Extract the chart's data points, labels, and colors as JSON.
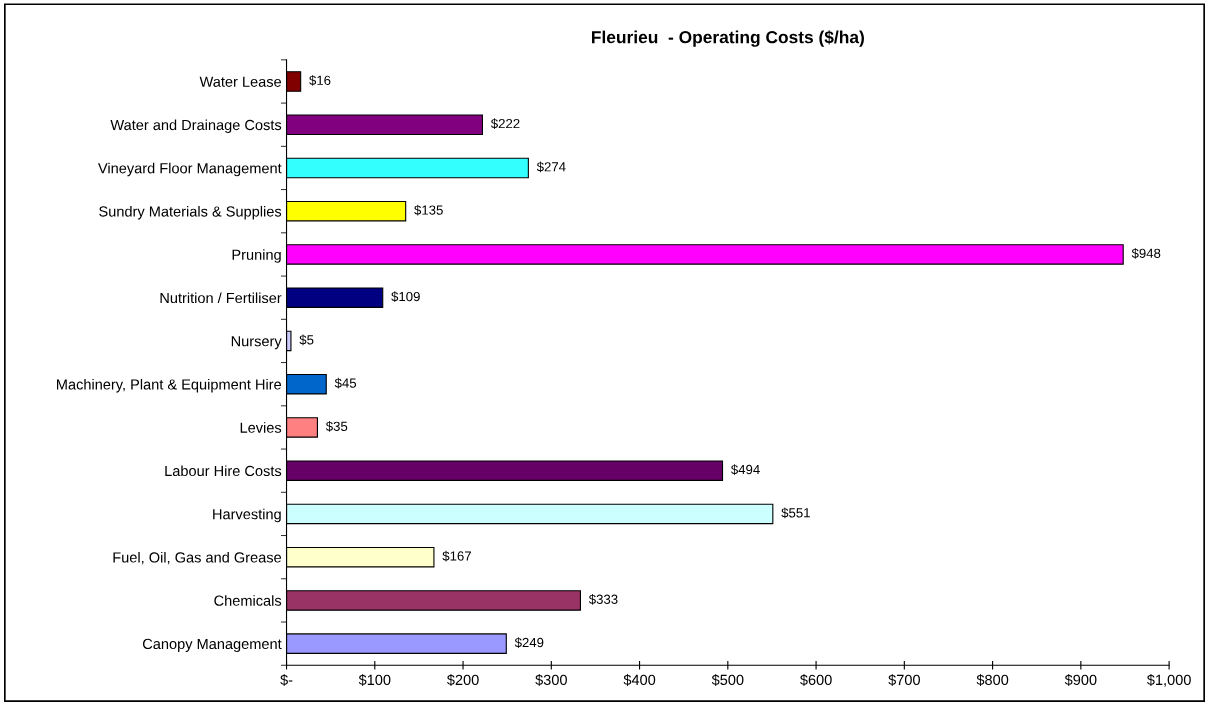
{
  "chart_data": {
    "type": "bar",
    "orientation": "horizontal",
    "title": "Fleurieu  - Operating Costs ($/ha)",
    "categories": [
      "Water Lease",
      "Water and Drainage Costs",
      "Vineyard Floor Management",
      "Sundry Materials & Supplies",
      "Pruning",
      "Nutrition / Fertiliser",
      "Nursery",
      "Machinery, Plant & Equipment Hire",
      "Levies",
      "Labour Hire Costs",
      "Harvesting",
      "Fuel, Oil, Gas and Grease",
      "Chemicals",
      "Canopy Management"
    ],
    "values": [
      16,
      222,
      274,
      135,
      948,
      109,
      5,
      45,
      35,
      494,
      551,
      167,
      333,
      249
    ],
    "value_labels": [
      "$16",
      "$222",
      "$274",
      "$135",
      "$948",
      "$109",
      "$5",
      "$45",
      "$35",
      "$494",
      "$551",
      "$167",
      "$333",
      "$249"
    ],
    "colors": [
      "#800000",
      "#800080",
      "#33ffff",
      "#ffff00",
      "#ff00ff",
      "#000080",
      "#ccccff",
      "#0066cc",
      "#ff8080",
      "#660066",
      "#ccffff",
      "#ffffcc",
      "#993366",
      "#9999ff"
    ],
    "xlim": [
      0,
      1000
    ],
    "xticks": [
      {
        "value": 0,
        "label": "$-"
      },
      {
        "value": 100,
        "label": "$100"
      },
      {
        "value": 200,
        "label": "$200"
      },
      {
        "value": 300,
        "label": "$300"
      },
      {
        "value": 400,
        "label": "$400"
      },
      {
        "value": 500,
        "label": "$500"
      },
      {
        "value": 600,
        "label": "$600"
      },
      {
        "value": 700,
        "label": "$700"
      },
      {
        "value": 800,
        "label": "$800"
      },
      {
        "value": 900,
        "label": "$900"
      },
      {
        "value": 1000,
        "label": "$1,000"
      }
    ],
    "grid": false
  }
}
